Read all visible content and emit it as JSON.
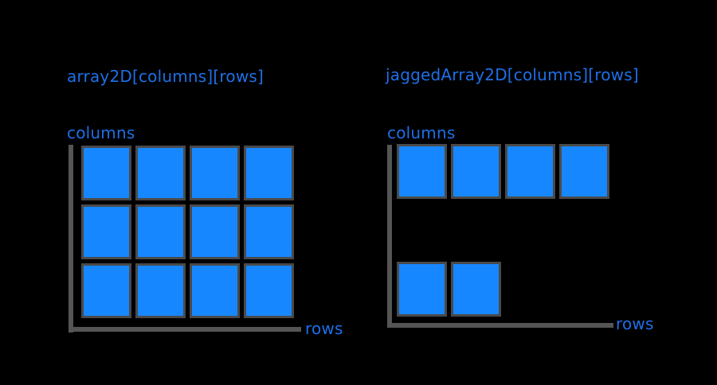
{
  "left_diagram": {
    "title": "array2D[columns][rows]",
    "vertical_label": "columns",
    "horizontal_label": "rows",
    "row_lengths": [
      4,
      4,
      4
    ]
  },
  "right_diagram": {
    "title": "jaggedArray2D[columns][rows]",
    "vertical_label": "columns",
    "horizontal_label": "rows",
    "row_lengths": [
      4,
      0,
      2
    ]
  },
  "colors": {
    "background": "#000000",
    "text": "#1e6fe6",
    "cell_fill": "#1787ff",
    "cell_border": "#4a4a4a",
    "axis": "#555555"
  }
}
